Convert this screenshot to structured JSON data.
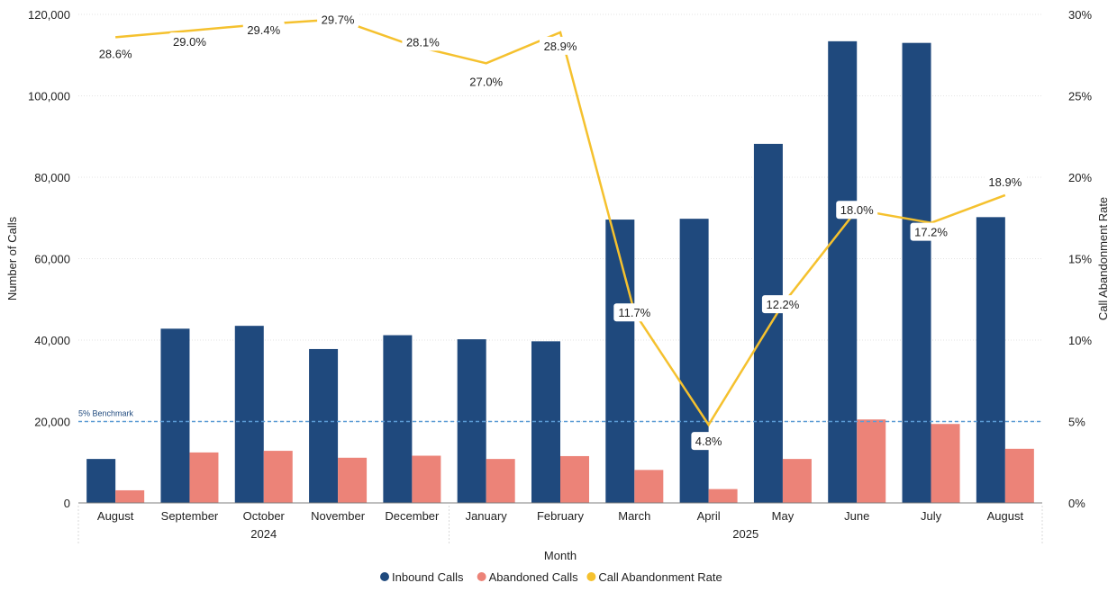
{
  "chart_data": {
    "type": "bar",
    "xlabel": "Month",
    "ylabel": "Number of Calls",
    "y2label": "Call Abandonment Rate",
    "categories": [
      "August",
      "September",
      "October",
      "November",
      "December",
      "January",
      "February",
      "March",
      "April",
      "May",
      "June",
      "July",
      "August"
    ],
    "year_groups": [
      {
        "label": "2024",
        "span": 5
      },
      {
        "label": "2025",
        "span": 8
      }
    ],
    "ylim": [
      0,
      120000
    ],
    "yticks": [
      "0",
      "20,000",
      "40,000",
      "60,000",
      "80,000",
      "100,000",
      "120,000"
    ],
    "y2lim": [
      0,
      30
    ],
    "y2ticks": [
      "0%",
      "5%",
      "10%",
      "15%",
      "20%",
      "25%",
      "30%"
    ],
    "series": [
      {
        "name": "Inbound Calls",
        "kind": "bar",
        "color": "#1f497d",
        "values": [
          10800,
          42800,
          43500,
          37800,
          41200,
          40200,
          39700,
          69600,
          69800,
          88200,
          113400,
          113000,
          70200
        ]
      },
      {
        "name": "Abandoned Calls",
        "kind": "bar",
        "color": "#ec8378",
        "values": [
          3100,
          12400,
          12800,
          11100,
          11600,
          10800,
          11500,
          8100,
          3400,
          10800,
          20500,
          19400,
          13300
        ]
      },
      {
        "name": "Call Abandonment Rate",
        "kind": "line",
        "axis": "right",
        "color": "#f5c12e",
        "values": [
          28.6,
          29.0,
          29.4,
          29.7,
          28.1,
          27.0,
          28.9,
          11.7,
          4.8,
          12.2,
          18.0,
          17.2,
          18.9
        ],
        "labels": [
          "28.6%",
          "29.0%",
          "29.4%",
          "29.7%",
          "28.1%",
          "27.0%",
          "28.9%",
          "11.7%",
          "4.8%",
          "12.2%",
          "18.0%",
          "17.2%",
          "18.9%"
        ]
      }
    ],
    "benchmark": {
      "label": "5% Benchmark",
      "value": 5,
      "color": "#5b9bd5"
    },
    "legend_position": "bottom-center",
    "grid": true
  }
}
